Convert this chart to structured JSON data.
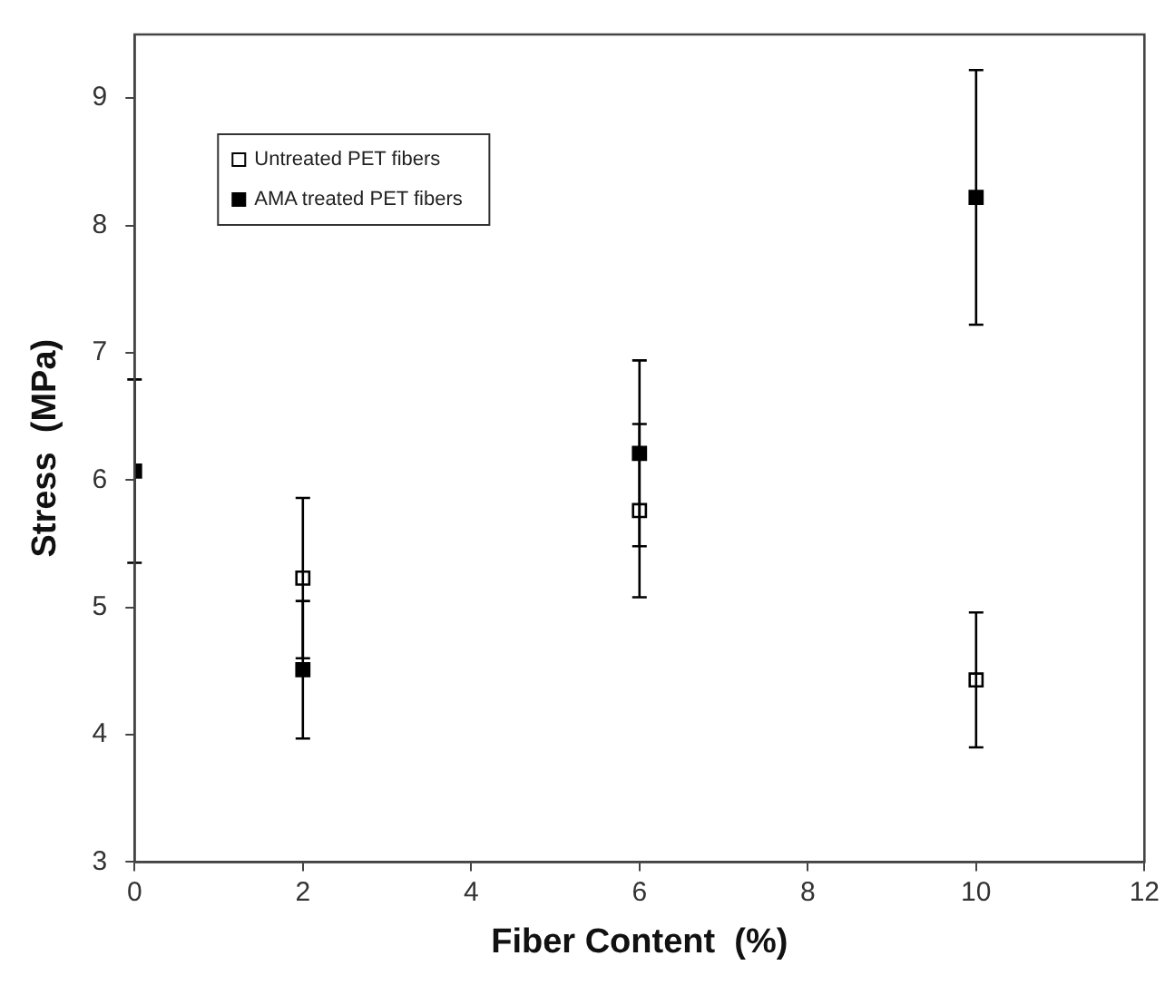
{
  "chart_data": {
    "type": "scatter",
    "xlabel": "Fiber Content  (%)",
    "ylabel": "Stress  (MPa)",
    "xlim": [
      0,
      12
    ],
    "xticks": [
      0,
      2,
      4,
      6,
      8,
      10,
      12
    ],
    "ylim": [
      3,
      9.5
    ],
    "yticks": [
      3,
      4,
      5,
      6,
      7,
      8,
      9
    ],
    "grid": false,
    "legend": "top left",
    "series": [
      {
        "name": "Untreated PET fibers",
        "color": "#000000",
        "marker": "square-open",
        "x": [
          2,
          6,
          10
        ],
        "values": [
          5.23,
          5.76,
          4.43
        ],
        "errors": [
          0.63,
          0.68,
          0.53
        ]
      },
      {
        "name": "AMA treated PET fibers",
        "color": "#000000",
        "marker": "square",
        "x": [
          0,
          2,
          6,
          10
        ],
        "values": [
          6.07,
          4.51,
          6.21,
          8.22
        ],
        "errors": [
          0.72,
          0.54,
          0.73,
          1.0
        ]
      }
    ]
  }
}
